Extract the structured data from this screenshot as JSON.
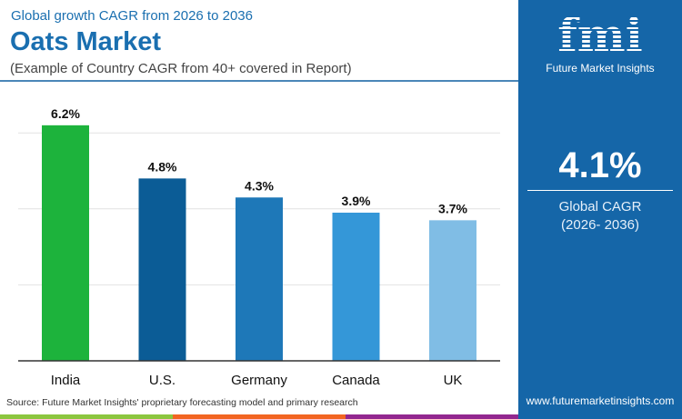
{
  "header": {
    "subtitle": "Global growth CAGR from 2026 to 2036",
    "title": "Oats Market",
    "note": "(Example of Country CAGR from 40+ covered in Report)"
  },
  "panel": {
    "logo": "fmi",
    "brand": "Future Market Insights",
    "cagr": "4.1%",
    "cagr_label": "Global CAGR",
    "cagr_period": "(2026- 2036)",
    "url": "www.futuremarketinsights.com"
  },
  "source": "Source: Future Market Insights' proprietary forecasting model and primary research",
  "colors": {
    "accent": "#1a6fb0",
    "panel": "#1566a8",
    "strip": [
      "#8cc63f",
      "#f26522",
      "#92278f"
    ]
  },
  "chart_data": {
    "type": "bar",
    "categories": [
      "India",
      "U.S.",
      "Germany",
      "Canada",
      "UK"
    ],
    "values": [
      6.2,
      4.8,
      4.3,
      3.9,
      3.7
    ],
    "labels": [
      "6.2%",
      "4.8%",
      "4.3%",
      "3.9%",
      "3.7%"
    ],
    "colors": [
      "#1db33c",
      "#0b5c96",
      "#1e78b8",
      "#3497d8",
      "#80bde5"
    ],
    "ylim": [
      0,
      6.8
    ],
    "grid": true,
    "gridlines": [
      2,
      4,
      6
    ]
  }
}
